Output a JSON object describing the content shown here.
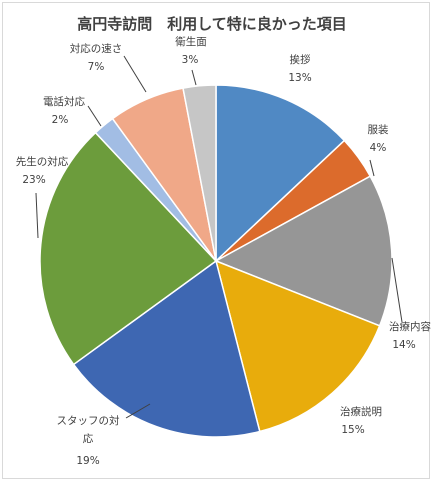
{
  "chart_data": {
    "type": "pie",
    "title": "高円寺訪問　利用して特に良かった項目",
    "slices": [
      {
        "name": "挨拶",
        "value": 13,
        "label": "13%",
        "color": "#5089c4"
      },
      {
        "name": "服装",
        "value": 4,
        "label": "4%",
        "color": "#dc6b2c"
      },
      {
        "name": "治療内容",
        "value": 14,
        "label": "14%",
        "color": "#969696"
      },
      {
        "name": "治療説明",
        "value": 15,
        "label": "15%",
        "color": "#e8ac0c"
      },
      {
        "name": "スタッフの対応",
        "value": 19,
        "label": "19%",
        "color": "#3e67b2"
      },
      {
        "name": "先生の対応",
        "value": 23,
        "label": "23%",
        "color": "#6c9c3c"
      },
      {
        "name": "電話対応",
        "value": 2,
        "label": "2%",
        "color": "#a2bde4"
      },
      {
        "name": "対応の速さ",
        "value": 7,
        "label": "7%",
        "color": "#f0a888"
      },
      {
        "name": "衛生面",
        "value": 3,
        "label": "3%",
        "color": "#c6c6c6"
      }
    ]
  }
}
